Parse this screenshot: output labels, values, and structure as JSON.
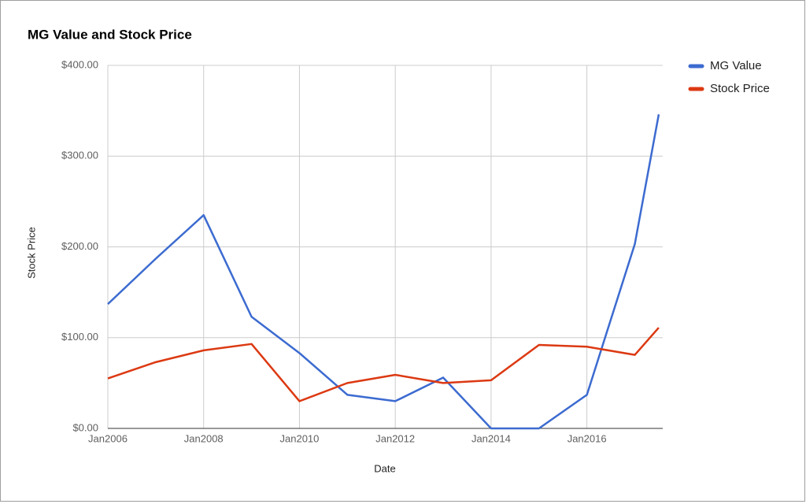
{
  "chart_data": {
    "type": "line",
    "title": "MG Value and Stock Price",
    "x_label": "Date",
    "y_label": "Stock Price",
    "x": [
      "2006-01",
      "2007-01",
      "2008-01",
      "2009-01",
      "2010-01",
      "2011-01",
      "2012-01",
      "2013-01",
      "2014-01",
      "2015-01",
      "2016-01",
      "2017-01",
      "2017-07"
    ],
    "series": [
      {
        "name": "MG Value",
        "color": "#3c6bd0",
        "values": [
          137,
          187,
          235,
          123,
          83,
          37,
          30,
          56,
          0,
          0,
          37,
          203,
          346
        ]
      },
      {
        "name": "Stock Price",
        "color": "#dc3912",
        "values": [
          55,
          73,
          86,
          93,
          30,
          50,
          59,
          50,
          53,
          92,
          90,
          81,
          111
        ]
      }
    ],
    "xlim": [
      "2006-01",
      "2017-08"
    ],
    "xticks": [
      {
        "value": "2006-01",
        "label": "Jan2006"
      },
      {
        "value": "2008-01",
        "label": "Jan2008"
      },
      {
        "value": "2010-01",
        "label": "Jan2010"
      },
      {
        "value": "2012-01",
        "label": "Jan2012"
      },
      {
        "value": "2014-01",
        "label": "Jan2014"
      },
      {
        "value": "2016-01",
        "label": "Jan2016"
      }
    ],
    "ylim": [
      0,
      400
    ],
    "yticks": [
      {
        "value": 0,
        "label": "$0.00"
      },
      {
        "value": 100,
        "label": "$100.00"
      },
      {
        "value": 200,
        "label": "$200.00"
      },
      {
        "value": 300,
        "label": "$300.00"
      },
      {
        "value": 400,
        "label": "$400.00"
      }
    ],
    "grid": true,
    "legend": "right"
  }
}
